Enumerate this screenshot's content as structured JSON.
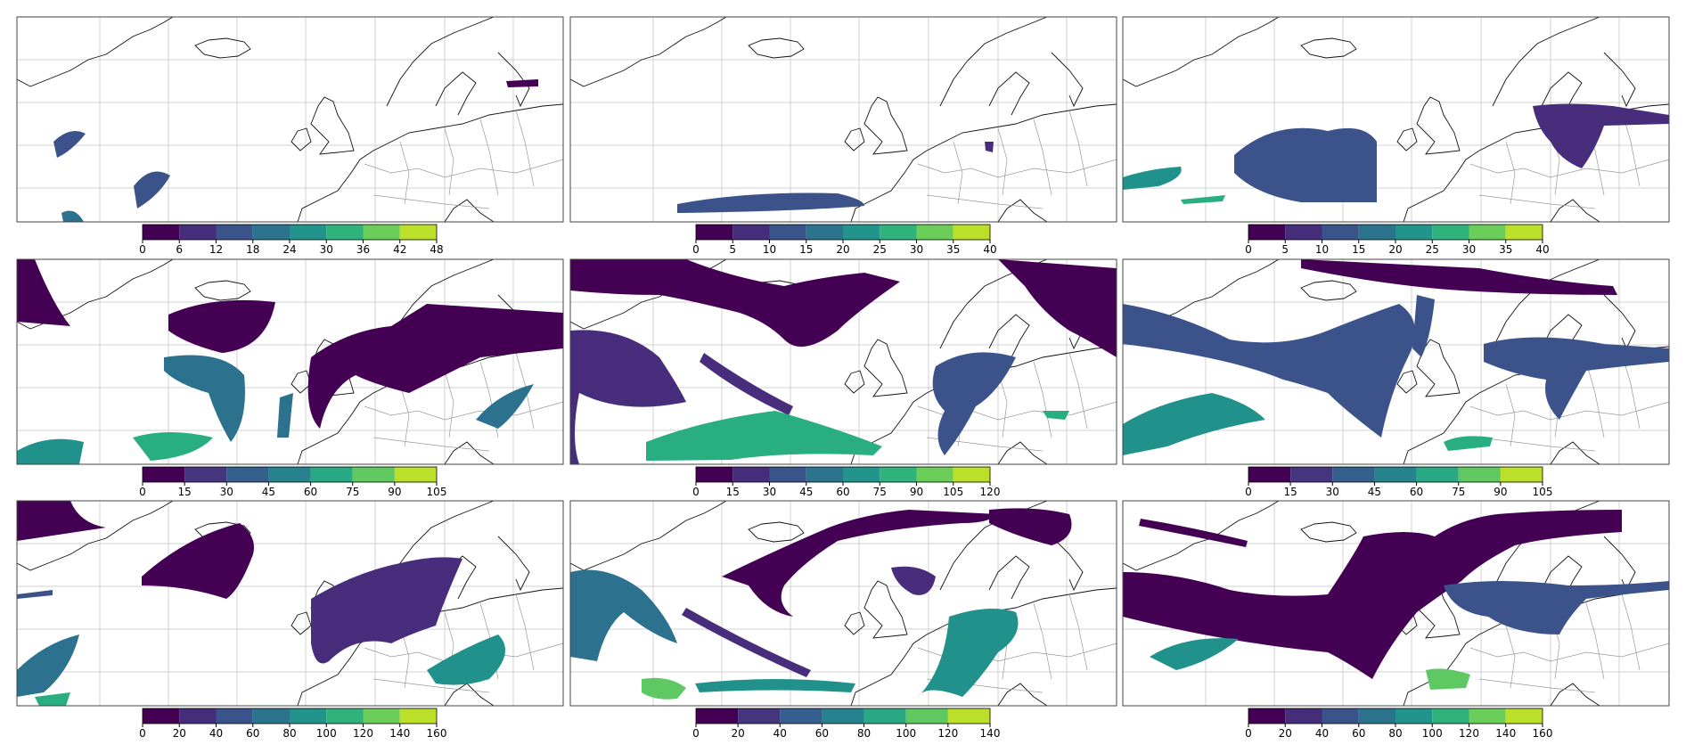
{
  "panels": [
    {
      "colorbar_ticks": [
        0,
        6,
        12,
        18,
        24,
        30,
        36,
        42,
        48
      ]
    },
    {
      "colorbar_ticks": [
        0,
        5,
        10,
        15,
        20,
        25,
        30,
        35,
        40
      ]
    },
    {
      "colorbar_ticks": [
        0,
        5,
        10,
        15,
        20,
        25,
        30,
        35,
        40
      ]
    },
    {
      "colorbar_ticks": [
        0,
        15,
        30,
        45,
        60,
        75,
        90,
        105
      ]
    },
    {
      "colorbar_ticks": [
        0,
        15,
        30,
        45,
        60,
        75,
        90,
        105,
        120
      ]
    },
    {
      "colorbar_ticks": [
        0,
        15,
        30,
        45,
        60,
        75,
        90,
        105
      ]
    },
    {
      "colorbar_ticks": [
        0,
        20,
        40,
        60,
        80,
        100,
        120,
        140,
        160
      ]
    },
    {
      "colorbar_ticks": [
        0,
        20,
        40,
        60,
        80,
        100,
        120,
        140
      ]
    },
    {
      "colorbar_ticks": [
        0,
        20,
        40,
        60,
        80,
        100,
        120,
        140,
        160
      ]
    }
  ],
  "colormap": [
    "#440154",
    "#482878",
    "#3e4989",
    "#31688e",
    "#26828e",
    "#1f9e89",
    "#35b779",
    "#6ece58",
    "#b5de2b",
    "#fde725"
  ]
}
